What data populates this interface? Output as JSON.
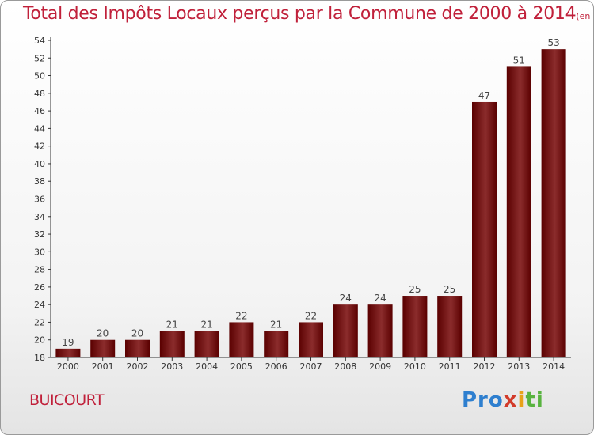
{
  "title": "Total des Impôts Locaux perçus par la Commune de 2000 à 2014",
  "unit": "(en milliers d'€)",
  "commune": "BUICOURT",
  "logo": {
    "p1": "Pro",
    "p2": "x",
    "p3": "i",
    "p4": "ti"
  },
  "colors": {
    "accent": "#c0203a",
    "bar_dark": "#5a0000",
    "bar_light": "#8b2c2c"
  },
  "chart_data": {
    "type": "bar",
    "categories": [
      "2000",
      "2001",
      "2002",
      "2003",
      "2004",
      "2005",
      "2006",
      "2007",
      "2008",
      "2009",
      "2010",
      "2011",
      "2012",
      "2013",
      "2014"
    ],
    "values": [
      19,
      20,
      20,
      21,
      21,
      22,
      21,
      22,
      24,
      24,
      25,
      25,
      47,
      51,
      53
    ],
    "ylim": [
      18,
      54
    ],
    "yticks": [
      18,
      20,
      22,
      24,
      26,
      28,
      30,
      32,
      34,
      36,
      38,
      40,
      42,
      44,
      46,
      48,
      50,
      52,
      54
    ],
    "grid": false,
    "xlabel": "",
    "ylabel": ""
  }
}
